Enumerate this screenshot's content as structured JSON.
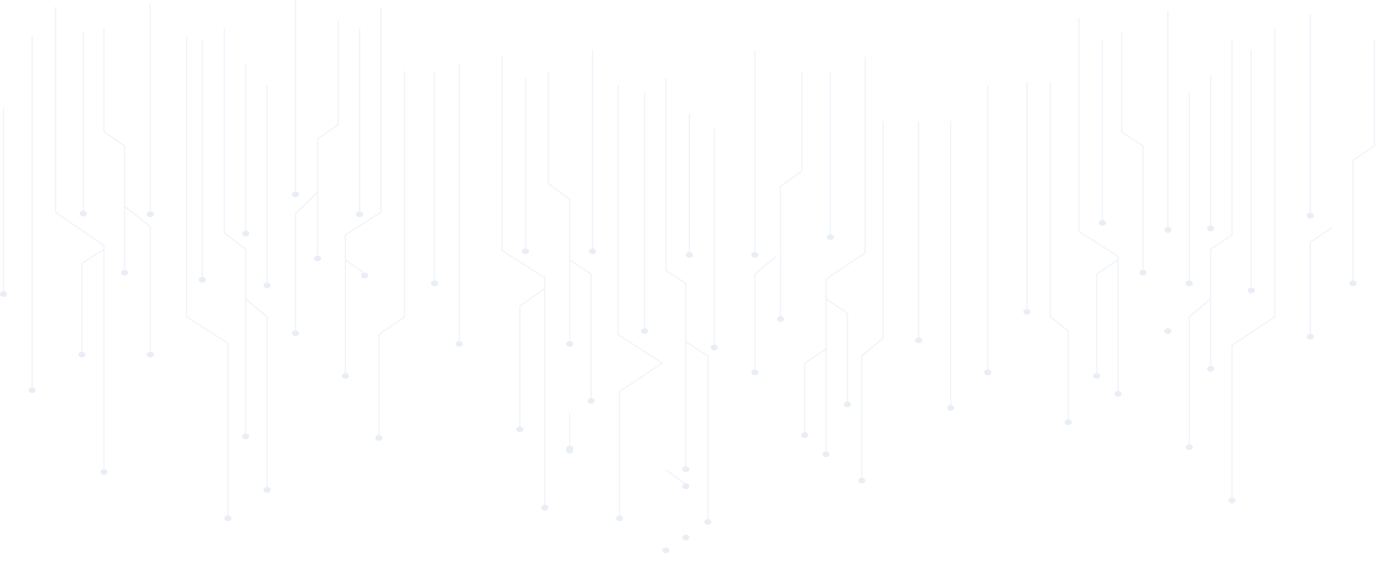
{
  "background": {
    "pattern": "circuit-lines",
    "colors": {
      "background": "#ffffff",
      "line": "#eef2f7",
      "node": "#e9eef5"
    }
  }
}
